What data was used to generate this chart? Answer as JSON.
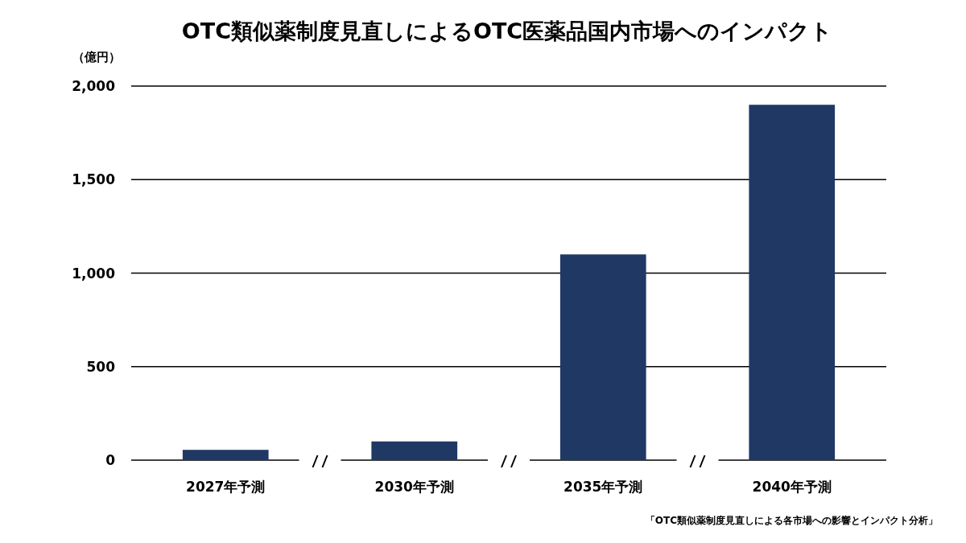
{
  "chart_data": {
    "type": "bar",
    "title": "OTC類似薬制度見直しによるOTC医薬品国内市場へのインパクト",
    "ylabel": "（億円）",
    "categories": [
      "2027年予測",
      "2030年予測",
      "2035年予測",
      "2040年予測"
    ],
    "values": [
      55,
      100,
      1100,
      1900
    ],
    "color": "#203864",
    "ylim": [
      0,
      2000
    ],
    "yticks": [
      {
        "value": 0,
        "label": "0"
      },
      {
        "value": 500,
        "label": "500"
      },
      {
        "value": 1000,
        "label": "1,000"
      },
      {
        "value": 1500,
        "label": "1,500"
      },
      {
        "value": 2000,
        "label": "2,000"
      }
    ],
    "grid": "y",
    "annotations": [
      "「OTC類似薬制度見直しによる各市場への影響とインパクト分析」"
    ]
  }
}
